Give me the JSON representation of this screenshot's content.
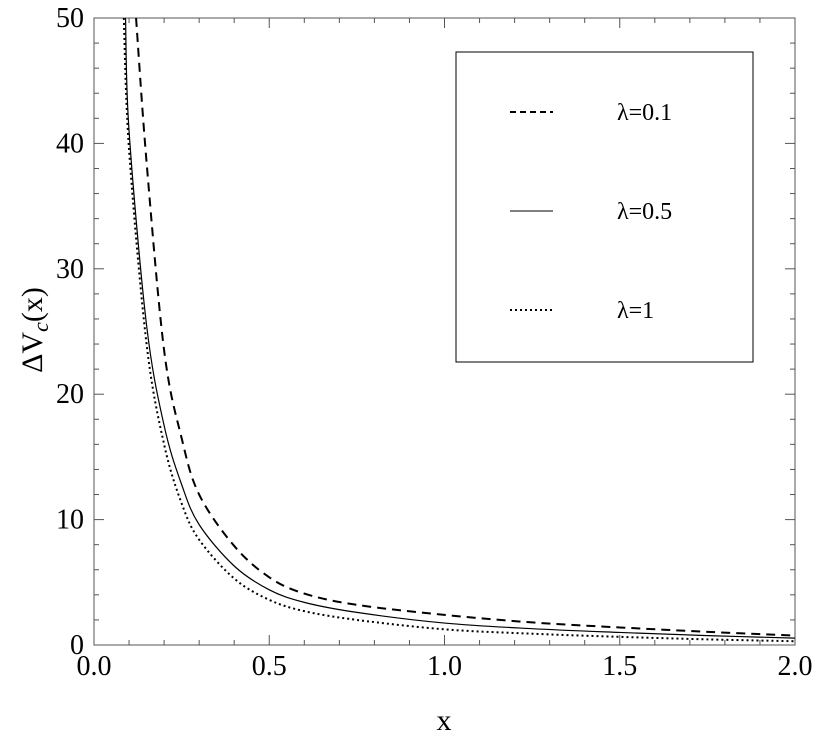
{
  "chart_data": {
    "type": "line",
    "title": "",
    "xlabel": "x",
    "ylabel": "ΔV_c(x)",
    "ylabel_parts": {
      "prefix": "ΔV",
      "subscript": "c",
      "suffix": "(x)"
    },
    "xlim": [
      0,
      2
    ],
    "ylim": [
      0,
      50
    ],
    "xticks": [
      0,
      0.5,
      1,
      1.5,
      2
    ],
    "xtick_labels": [
      "0.0",
      "0.5",
      "1.0",
      "1.5",
      "2.0"
    ],
    "yticks": [
      0,
      10,
      20,
      30,
      40,
      50
    ],
    "ytick_labels": [
      "0",
      "10",
      "20",
      "30",
      "40",
      "50"
    ],
    "grid": false,
    "legend_position": "top-right",
    "series": [
      {
        "name": "λ=0.1",
        "style": "dashed",
        "color": "#000000",
        "x": [
          0.12,
          0.15,
          0.2,
          0.25,
          0.3,
          0.4,
          0.5,
          0.6,
          0.75,
          1.0,
          1.25,
          1.5,
          1.75,
          2.0
        ],
        "y": [
          50,
          38.5,
          23.5,
          16.5,
          12.0,
          7.9,
          5.4,
          4.1,
          3.2,
          2.4,
          1.8,
          1.4,
          1.05,
          0.75
        ]
      },
      {
        "name": "λ=0.5",
        "style": "solid",
        "color": "#000000",
        "x": [
          0.09,
          0.1,
          0.15,
          0.2,
          0.25,
          0.3,
          0.4,
          0.5,
          0.6,
          0.75,
          1.0,
          1.25,
          1.5,
          1.75,
          2.0
        ],
        "y": [
          50,
          41.0,
          25.5,
          17.5,
          12.8,
          9.6,
          6.3,
          4.4,
          3.4,
          2.6,
          1.75,
          1.3,
          1.0,
          0.75,
          0.55
        ]
      },
      {
        "name": "λ=1",
        "style": "dotted",
        "color": "#000000",
        "x": [
          0.085,
          0.1,
          0.15,
          0.2,
          0.25,
          0.3,
          0.4,
          0.5,
          0.6,
          0.75,
          1.0,
          1.25,
          1.5,
          1.75,
          2.0
        ],
        "y": [
          50,
          39.5,
          24.0,
          16.0,
          11.3,
          8.4,
          5.3,
          3.6,
          2.7,
          2.0,
          1.25,
          0.9,
          0.65,
          0.45,
          0.3
        ]
      }
    ]
  }
}
